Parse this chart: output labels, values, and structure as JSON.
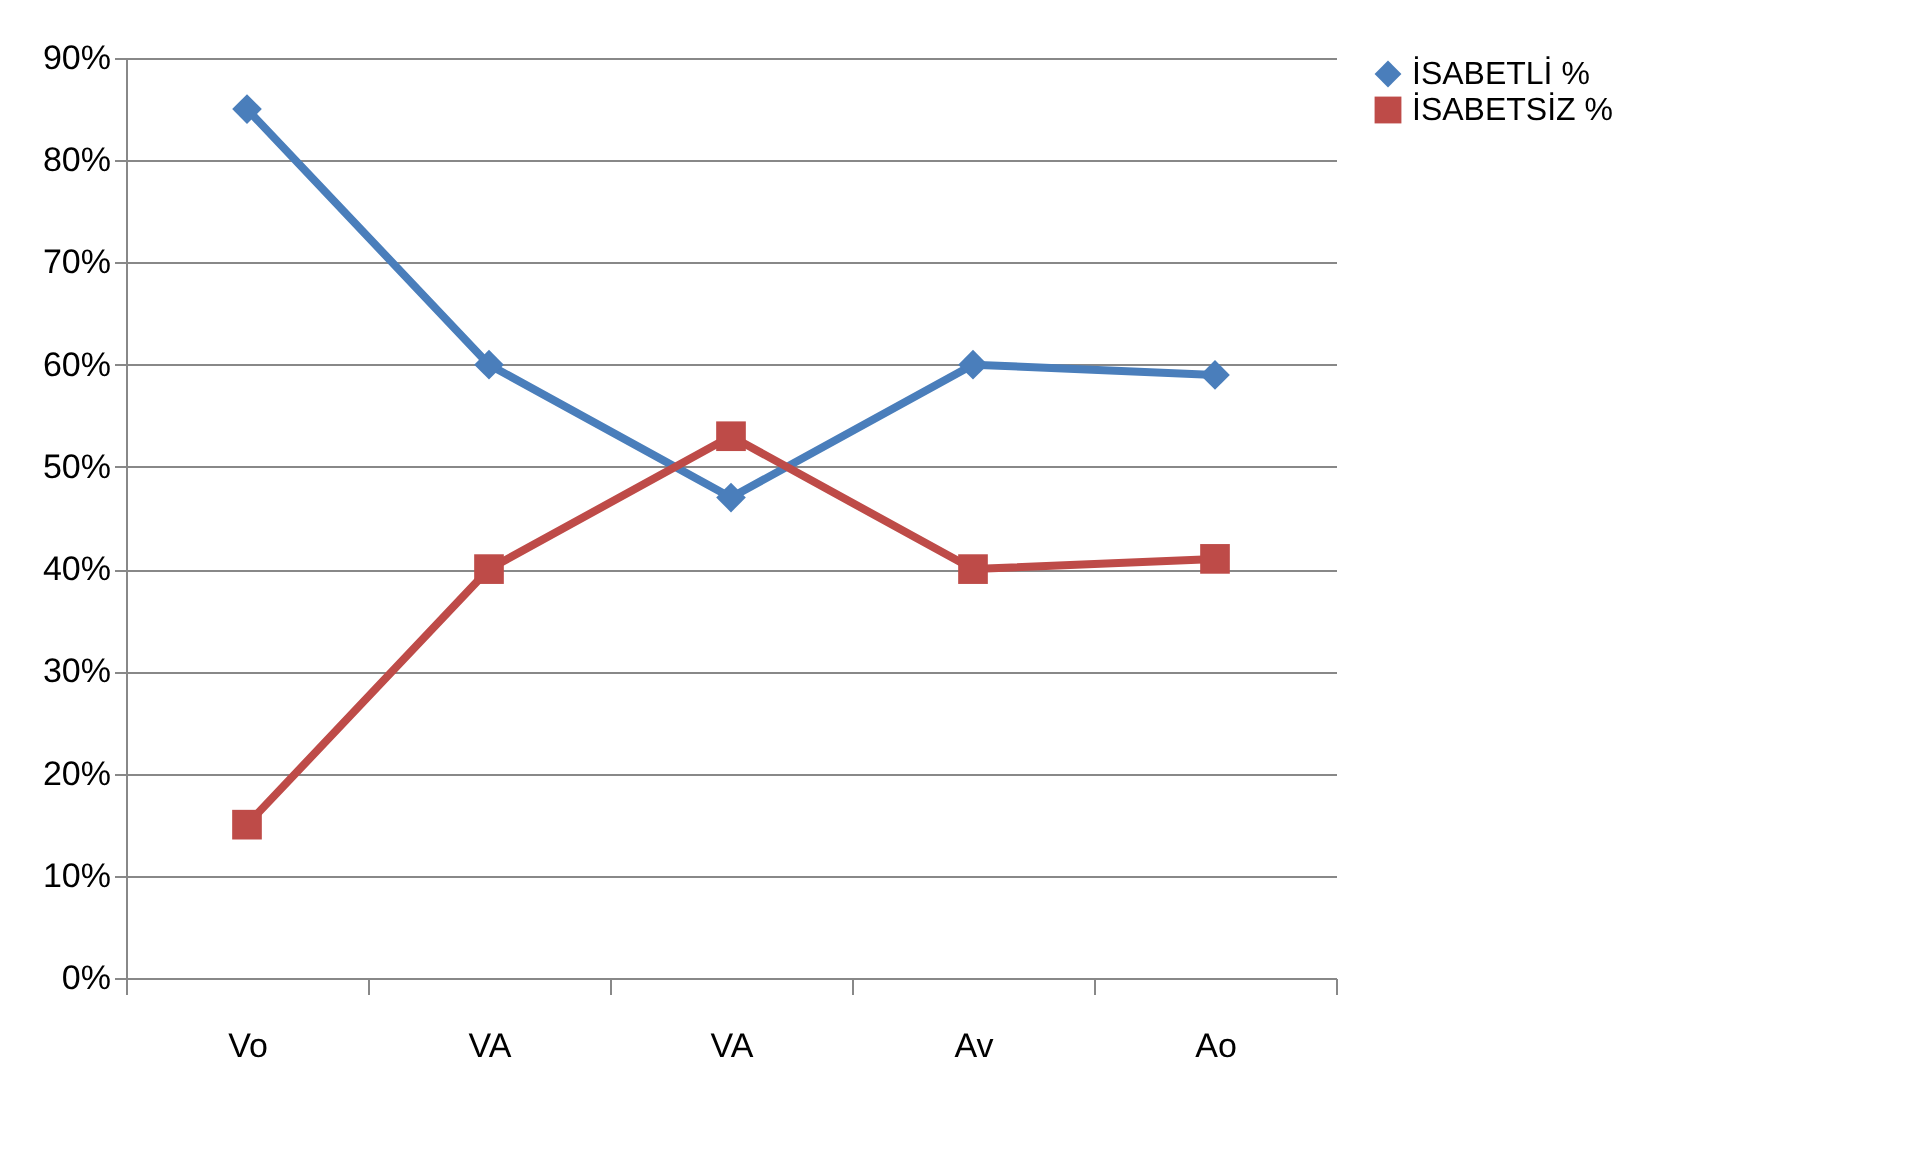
{
  "chart_data": {
    "type": "line",
    "categories": [
      "Vo",
      "VA",
      "VA",
      "Av",
      "Ao"
    ],
    "series": [
      {
        "name": "İSABETLİ %",
        "color": "#4a7ebb",
        "marker": "diamond",
        "values": [
          85,
          60,
          47,
          60,
          59
        ]
      },
      {
        "name": "İSABETSİZ %",
        "color": "#be4b48",
        "marker": "square",
        "values": [
          15,
          40,
          53,
          40,
          41
        ]
      }
    ],
    "ylim": [
      0,
      90
    ],
    "yticks": [
      {
        "value": 0,
        "label": "0%"
      },
      {
        "value": 10,
        "label": "10%"
      },
      {
        "value": 20,
        "label": "20%"
      },
      {
        "value": 30,
        "label": "30%"
      },
      {
        "value": 40,
        "label": "40%"
      },
      {
        "value": 50,
        "label": "50%"
      },
      {
        "value": 60,
        "label": "60%"
      },
      {
        "value": 70,
        "label": "70%"
      },
      {
        "value": 80,
        "label": "80%"
      },
      {
        "value": 90,
        "label": "90%"
      }
    ],
    "grid": "y",
    "legend": "right",
    "line_style": "solid"
  }
}
